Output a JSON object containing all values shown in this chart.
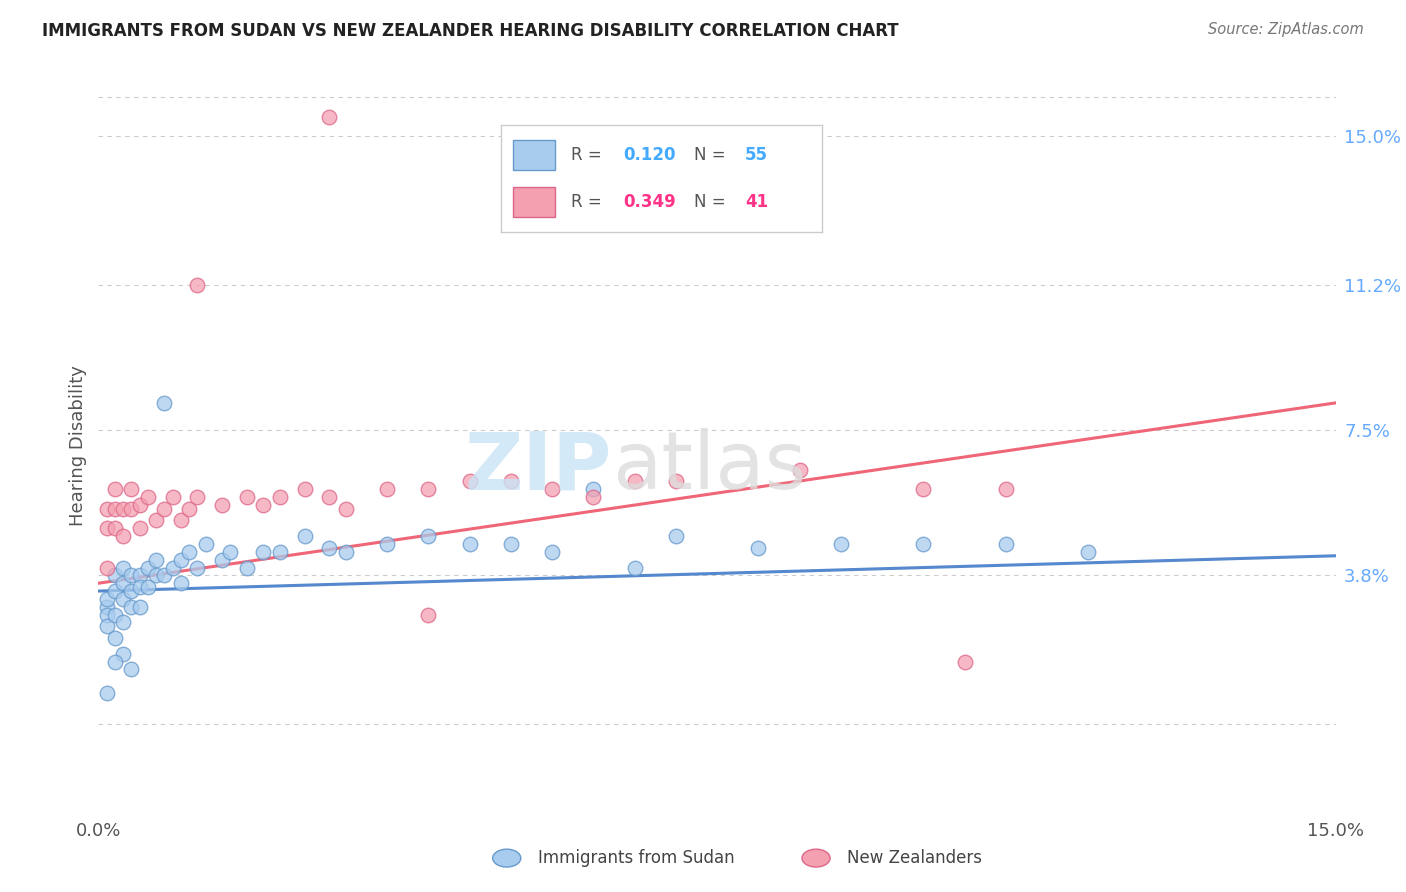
{
  "title": "IMMIGRANTS FROM SUDAN VS NEW ZEALANDER HEARING DISABILITY CORRELATION CHART",
  "source": "Source: ZipAtlas.com",
  "ylabel": "Hearing Disability",
  "ytick_values": [
    0.15,
    0.112,
    0.075,
    0.038
  ],
  "xmin": 0.0,
  "xmax": 0.15,
  "ymin": -0.02,
  "ymax": 0.162,
  "color_blue_fill": "#A8CCEE",
  "color_pink_fill": "#F4A0B0",
  "color_blue_edge": "#6699CC",
  "color_pink_edge": "#DD6688",
  "color_blue_line": "#5588CC",
  "color_pink_line": "#EE6677",
  "color_r_blue": "#44AAFF",
  "color_r_pink": "#FF3388",
  "color_n_blue": "#44AAFF",
  "color_n_pink": "#FF3388",
  "color_ytick": "#66AAFF",
  "color_grid": "#CCCCCC",
  "blue_x": [
    0.001,
    0.001,
    0.001,
    0.001,
    0.002,
    0.002,
    0.002,
    0.002,
    0.003,
    0.003,
    0.003,
    0.003,
    0.004,
    0.004,
    0.004,
    0.005,
    0.005,
    0.005,
    0.006,
    0.006,
    0.007,
    0.007,
    0.008,
    0.009,
    0.01,
    0.01,
    0.011,
    0.012,
    0.013,
    0.015,
    0.016,
    0.018,
    0.02,
    0.022,
    0.025,
    0.028,
    0.03,
    0.035,
    0.04,
    0.045,
    0.05,
    0.055,
    0.06,
    0.065,
    0.07,
    0.08,
    0.09,
    0.1,
    0.11,
    0.12,
    0.003,
    0.002,
    0.004,
    0.001,
    0.008
  ],
  "blue_y": [
    0.03,
    0.028,
    0.032,
    0.025,
    0.038,
    0.034,
    0.028,
    0.022,
    0.04,
    0.036,
    0.032,
    0.026,
    0.038,
    0.034,
    0.03,
    0.038,
    0.035,
    0.03,
    0.04,
    0.035,
    0.042,
    0.038,
    0.038,
    0.04,
    0.042,
    0.036,
    0.044,
    0.04,
    0.046,
    0.042,
    0.044,
    0.04,
    0.044,
    0.044,
    0.048,
    0.045,
    0.044,
    0.046,
    0.048,
    0.046,
    0.046,
    0.044,
    0.06,
    0.04,
    0.048,
    0.045,
    0.046,
    0.046,
    0.046,
    0.044,
    0.018,
    0.016,
    0.014,
    0.008,
    0.082
  ],
  "pink_x": [
    0.001,
    0.001,
    0.001,
    0.002,
    0.002,
    0.002,
    0.003,
    0.003,
    0.004,
    0.004,
    0.005,
    0.005,
    0.006,
    0.007,
    0.008,
    0.009,
    0.01,
    0.011,
    0.012,
    0.015,
    0.018,
    0.02,
    0.022,
    0.025,
    0.028,
    0.03,
    0.035,
    0.04,
    0.045,
    0.05,
    0.055,
    0.06,
    0.065,
    0.07,
    0.085,
    0.1,
    0.11,
    0.028,
    0.04,
    0.105,
    0.012
  ],
  "pink_y": [
    0.04,
    0.05,
    0.055,
    0.05,
    0.055,
    0.06,
    0.055,
    0.048,
    0.055,
    0.06,
    0.05,
    0.056,
    0.058,
    0.052,
    0.055,
    0.058,
    0.052,
    0.055,
    0.058,
    0.056,
    0.058,
    0.056,
    0.058,
    0.06,
    0.058,
    0.055,
    0.06,
    0.06,
    0.062,
    0.062,
    0.06,
    0.058,
    0.062,
    0.062,
    0.065,
    0.06,
    0.06,
    0.155,
    0.028,
    0.016,
    0.112
  ],
  "blue_line_x": [
    0.0,
    0.15
  ],
  "blue_line_y": [
    0.034,
    0.043
  ],
  "pink_line_x": [
    0.0,
    0.15
  ],
  "pink_line_y": [
    0.036,
    0.082
  ]
}
